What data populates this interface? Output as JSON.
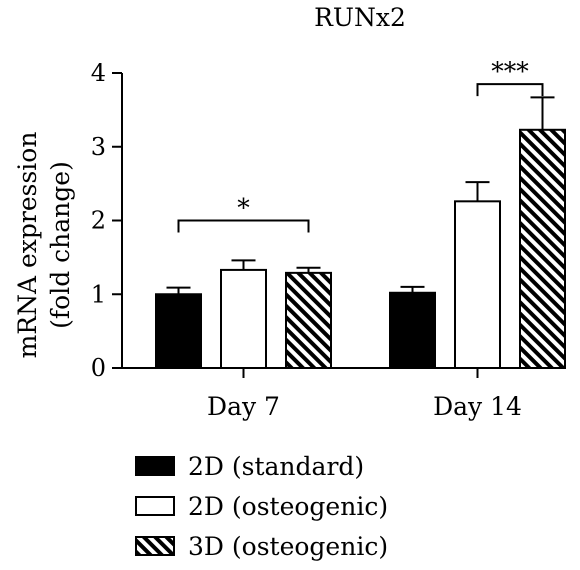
{
  "chart_data": {
    "type": "bar",
    "title": "RUNx2",
    "ylabel_line1": "mRNA expression",
    "ylabel_line2": "(fold change)",
    "xlabel": "",
    "ylim": [
      0,
      4
    ],
    "yticks": [
      0,
      1,
      2,
      3,
      4
    ],
    "grid": false,
    "legend_position": "bottom-left",
    "categories": [
      "Day 7",
      "Day 14"
    ],
    "series": [
      {
        "name": "2D (standard)",
        "fill": "solid",
        "color": "#000000",
        "values": [
          1.0,
          1.02
        ],
        "errors": [
          0.09,
          0.08
        ]
      },
      {
        "name": "2D (osteogenic)",
        "fill": "open",
        "color": "#ffffff",
        "values": [
          1.33,
          2.26
        ],
        "errors": [
          0.13,
          0.26
        ]
      },
      {
        "name": "3D (osteogenic)",
        "fill": "hatched",
        "color": "#000000",
        "values": [
          1.29,
          3.23
        ],
        "errors": [
          0.07,
          0.44
        ]
      }
    ],
    "significance": [
      {
        "label": "*",
        "category": 0,
        "from_series": 0,
        "to_series": 2,
        "y": 2.0
      },
      {
        "label": "***",
        "category": 1,
        "from_series": 1,
        "to_series": 2,
        "y": 3.85
      }
    ]
  }
}
